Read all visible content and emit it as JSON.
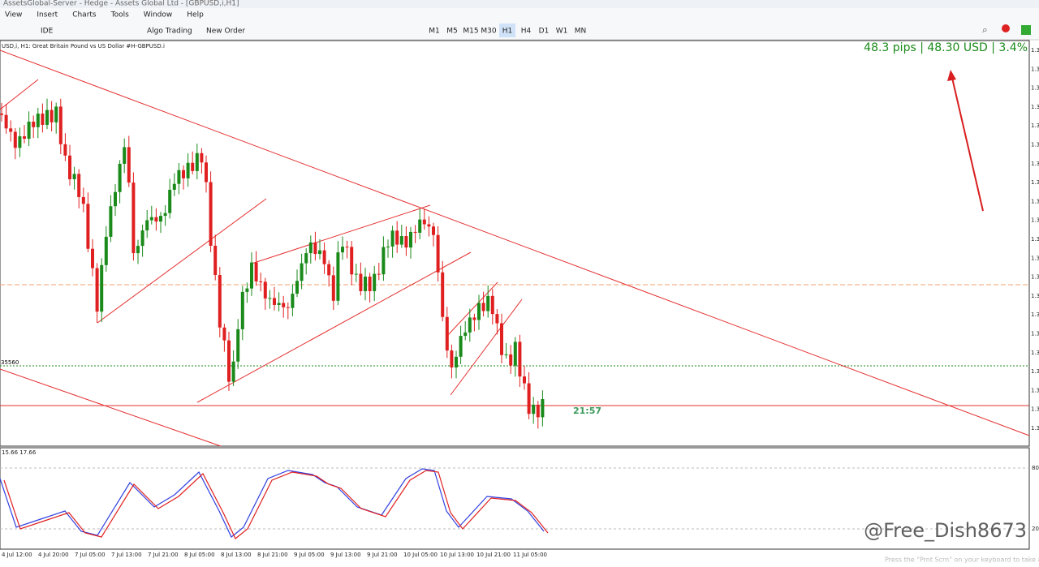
{
  "window": {
    "title": "AssetsGlobal-Server - Hedge - Assets Global Ltd - [GBPUSD,i,H1]"
  },
  "menu": [
    "View",
    "Insert",
    "Charts",
    "Tools",
    "Window",
    "Help"
  ],
  "toolbar": {
    "buttons": [
      "IDE",
      "Algo Trading",
      "New Order"
    ],
    "timeframes": [
      "M1",
      "M5",
      "M15",
      "M30",
      "H1",
      "H4",
      "D1",
      "W1",
      "MN"
    ]
  },
  "chart": {
    "header": "USD,i, H1:  Great Britain Pound vs US Dollar #H-GBPUSD.i",
    "profit_label": "48.3 pips | 48.30 USD | 3.4%",
    "timer": "21:57",
    "level_label": "35560",
    "price_axis": [
      "1.3",
      "1.3",
      "1.3",
      "1.3",
      "1.3",
      "1.3",
      "1.3",
      "1.3",
      "1.3",
      "1.3",
      "1.3",
      "1.3",
      "1.3",
      "1.3",
      "1.3",
      "1.3",
      "1.3",
      "1.3",
      "1.3",
      "1.3",
      "1.3"
    ],
    "x_axis": [
      "4 Jul 12:00",
      "4 Jul 20:00",
      "7 Jul 05:00",
      "7 Jul 13:00",
      "7 Jul 21:00",
      "8 Jul 05:00",
      "8 Jul 13:00",
      "8 Jul 21:00",
      "9 Jul 05:00",
      "9 Jul 13:00",
      "9 Jul 21:00",
      "10 Jul 05:00",
      "10 Jul 13:00",
      "10 Jul 21:00",
      "11 Jul 05:00"
    ]
  },
  "indicator": {
    "values_label": "15.66 17.66",
    "levels": [
      "80",
      "20"
    ]
  },
  "watermark": "@Free_Dish8673",
  "status_hint": "Press the \"Prnt Scrn\" on your keyboard to take a"
}
